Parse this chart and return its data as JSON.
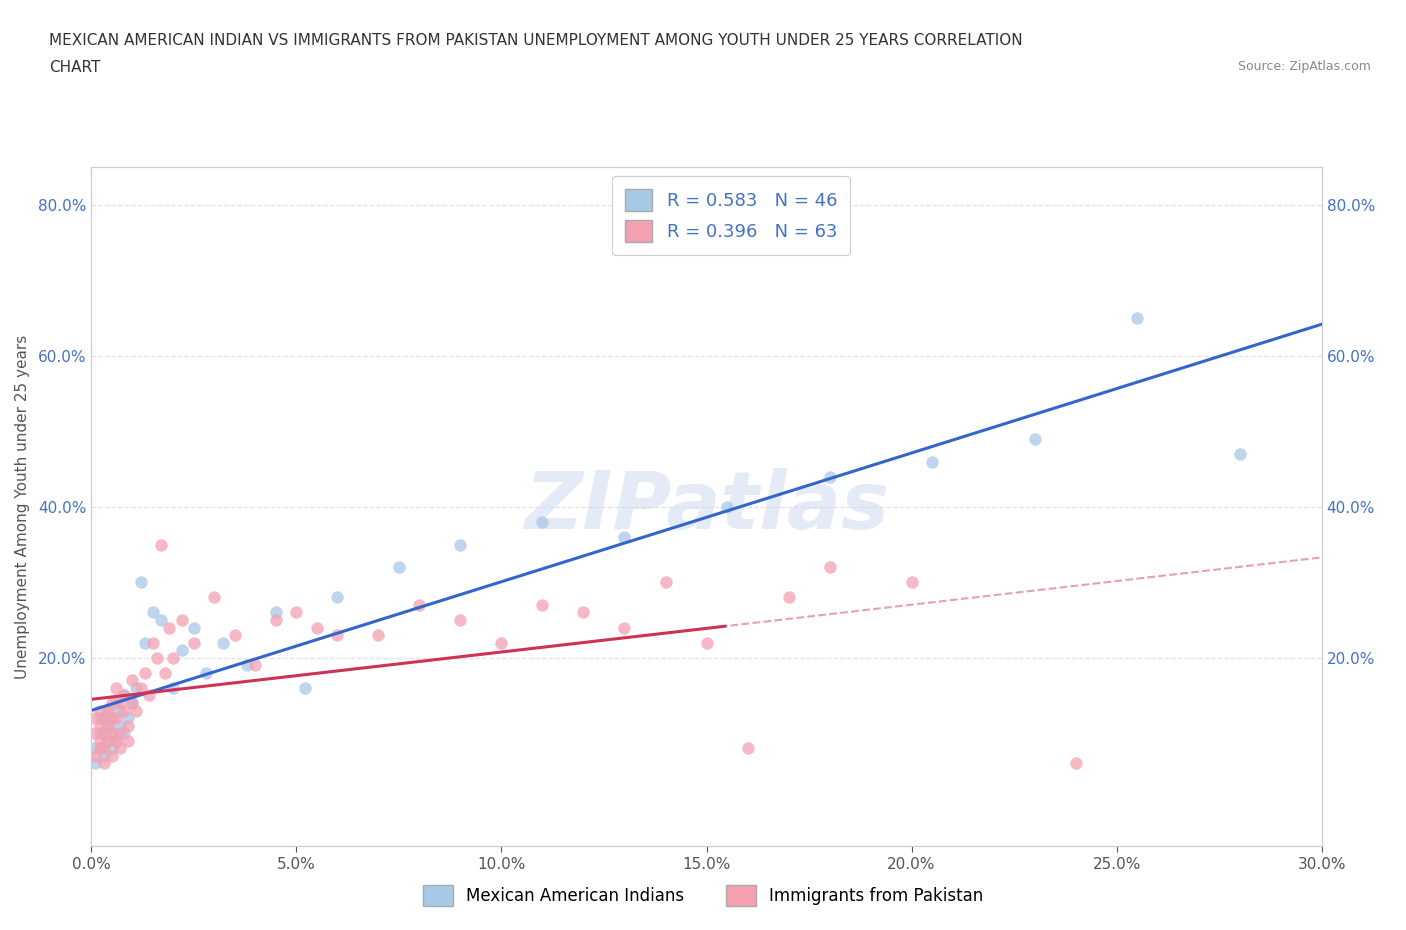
{
  "title_line1": "MEXICAN AMERICAN INDIAN VS IMMIGRANTS FROM PAKISTAN UNEMPLOYMENT AMONG YOUTH UNDER 25 YEARS CORRELATION",
  "title_line2": "CHART",
  "source_text": "Source: ZipAtlas.com",
  "ylabel": "Unemployment Among Youth under 25 years",
  "xlim": [
    0.0,
    0.3
  ],
  "ylim": [
    -0.05,
    0.85
  ],
  "xtick_labels": [
    "0.0%",
    "5.0%",
    "10.0%",
    "15.0%",
    "20.0%",
    "25.0%",
    "30.0%"
  ],
  "xtick_vals": [
    0.0,
    0.05,
    0.1,
    0.15,
    0.2,
    0.25,
    0.3
  ],
  "ytick_labels": [
    "20.0%",
    "40.0%",
    "60.0%",
    "80.0%"
  ],
  "ytick_vals": [
    0.2,
    0.4,
    0.6,
    0.8
  ],
  "blue_color": "#a8c8e8",
  "pink_color": "#f4a0b0",
  "blue_line_color": "#3366cc",
  "pink_line_color": "#cc3355",
  "pink_dashed_color": "#e8a0b0",
  "watermark_text": "ZIPatlas",
  "legend_R1": "R = 0.583   N = 46",
  "legend_R2": "R = 0.396   N = 63",
  "legend_label1": "Mexican American Indians",
  "legend_label2": "Immigrants from Pakistan",
  "blue_scatter_x": [
    0.001,
    0.001,
    0.002,
    0.002,
    0.002,
    0.003,
    0.003,
    0.003,
    0.004,
    0.004,
    0.004,
    0.005,
    0.005,
    0.005,
    0.006,
    0.006,
    0.007,
    0.007,
    0.008,
    0.008,
    0.009,
    0.01,
    0.011,
    0.012,
    0.013,
    0.015,
    0.017,
    0.02,
    0.022,
    0.025,
    0.028,
    0.032,
    0.038,
    0.045,
    0.052,
    0.06,
    0.075,
    0.09,
    0.11,
    0.13,
    0.155,
    0.18,
    0.205,
    0.23,
    0.255,
    0.28
  ],
  "blue_scatter_y": [
    0.08,
    0.06,
    0.1,
    0.08,
    0.12,
    0.07,
    0.1,
    0.12,
    0.09,
    0.11,
    0.13,
    0.08,
    0.12,
    0.1,
    0.14,
    0.09,
    0.11,
    0.13,
    0.1,
    0.15,
    0.12,
    0.14,
    0.16,
    0.3,
    0.22,
    0.26,
    0.25,
    0.16,
    0.21,
    0.24,
    0.18,
    0.22,
    0.19,
    0.26,
    0.16,
    0.28,
    0.32,
    0.35,
    0.38,
    0.36,
    0.4,
    0.44,
    0.46,
    0.49,
    0.65,
    0.47
  ],
  "pink_scatter_x": [
    0.001,
    0.001,
    0.001,
    0.002,
    0.002,
    0.002,
    0.002,
    0.003,
    0.003,
    0.003,
    0.003,
    0.004,
    0.004,
    0.004,
    0.005,
    0.005,
    0.005,
    0.005,
    0.006,
    0.006,
    0.006,
    0.007,
    0.007,
    0.007,
    0.008,
    0.008,
    0.009,
    0.009,
    0.01,
    0.01,
    0.011,
    0.012,
    0.013,
    0.014,
    0.015,
    0.016,
    0.017,
    0.018,
    0.019,
    0.02,
    0.022,
    0.025,
    0.03,
    0.035,
    0.04,
    0.045,
    0.05,
    0.055,
    0.06,
    0.07,
    0.08,
    0.09,
    0.1,
    0.11,
    0.12,
    0.13,
    0.14,
    0.15,
    0.16,
    0.17,
    0.18,
    0.2,
    0.24
  ],
  "pink_scatter_y": [
    0.1,
    0.07,
    0.12,
    0.08,
    0.11,
    0.09,
    0.13,
    0.06,
    0.1,
    0.12,
    0.08,
    0.11,
    0.13,
    0.09,
    0.07,
    0.12,
    0.1,
    0.14,
    0.09,
    0.12,
    0.16,
    0.1,
    0.14,
    0.08,
    0.13,
    0.15,
    0.11,
    0.09,
    0.14,
    0.17,
    0.13,
    0.16,
    0.18,
    0.15,
    0.22,
    0.2,
    0.35,
    0.18,
    0.24,
    0.2,
    0.25,
    0.22,
    0.28,
    0.23,
    0.19,
    0.25,
    0.26,
    0.24,
    0.23,
    0.23,
    0.27,
    0.25,
    0.22,
    0.27,
    0.26,
    0.24,
    0.3,
    0.22,
    0.08,
    0.28,
    0.32,
    0.3,
    0.06
  ],
  "grid_color": "#dddddd",
  "background_color": "#ffffff",
  "fig_background": "#ffffff",
  "title_fontsize": 11,
  "source_fontsize": 9,
  "axis_label_fontsize": 11,
  "tick_fontsize": 11
}
